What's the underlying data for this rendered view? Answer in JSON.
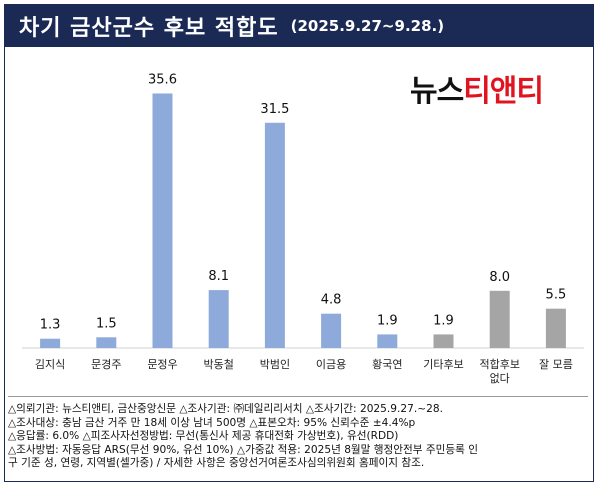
{
  "header": {
    "title": "차기 금산군수 후보 적합도",
    "subtitle": "(2025.9.27~9.28.)"
  },
  "logo": {
    "part1": "뉴스",
    "part2": "티앤티"
  },
  "chart_data": {
    "type": "bar",
    "categories": [
      "김지식",
      "문경주",
      "문정우",
      "박동철",
      "박범인",
      "이금용",
      "황국연",
      "기타후보",
      "적합후보\n없다",
      "잘 모름"
    ],
    "category_lines": [
      [
        "김지식"
      ],
      [
        "문경주"
      ],
      [
        "문정우"
      ],
      [
        "박동철"
      ],
      [
        "박범인"
      ],
      [
        "이금용"
      ],
      [
        "황국연"
      ],
      [
        "기타후보"
      ],
      [
        "적합후보",
        "없다"
      ],
      [
        "잘 모름"
      ]
    ],
    "values": [
      1.3,
      1.5,
      35.6,
      8.1,
      31.5,
      4.8,
      1.9,
      1.9,
      8.0,
      5.5
    ],
    "value_labels": [
      "1.3",
      "1.5",
      "35.6",
      "8.1",
      "31.5",
      "4.8",
      "1.9",
      "1.9",
      "8.0",
      "5.5"
    ],
    "bar_colors": [
      "#8eaadb",
      "#8eaadb",
      "#8eaadb",
      "#8eaadb",
      "#8eaadb",
      "#8eaadb",
      "#8eaadb",
      "#a5a5a5",
      "#a5a5a5",
      "#a5a5a5"
    ],
    "ylim": [
      0,
      40
    ],
    "grid": false,
    "title": "",
    "xlabel": "",
    "ylabel": ""
  },
  "footnotes": [
    "△의뢰기관: 뉴스티앤티, 금산중앙신문 △조사기관: ㈜데일리리서치 △조사기간: 2025.9.27.~28.",
    "△조사대상: 충남 금산 거주 만 18세 이상 남녀 500명 △표본오차: 95% 신뢰수준 ±4.4%p",
    "△응답률: 6.0% △피조사자선정방법: 무선(통신사 제공 휴대전화 가상번호), 유선(RDD)",
    "△조사방법: 자동응답 ARS(무선 90%, 유선 10%) △가중값 적용: 2025년 8월말 행정안전부 주민등록 인",
    "구 기준 성, 연령, 지역별(셀가중) / 자세한 사항은 중앙선거여론조사심의위원회 홈페이지 참조."
  ]
}
